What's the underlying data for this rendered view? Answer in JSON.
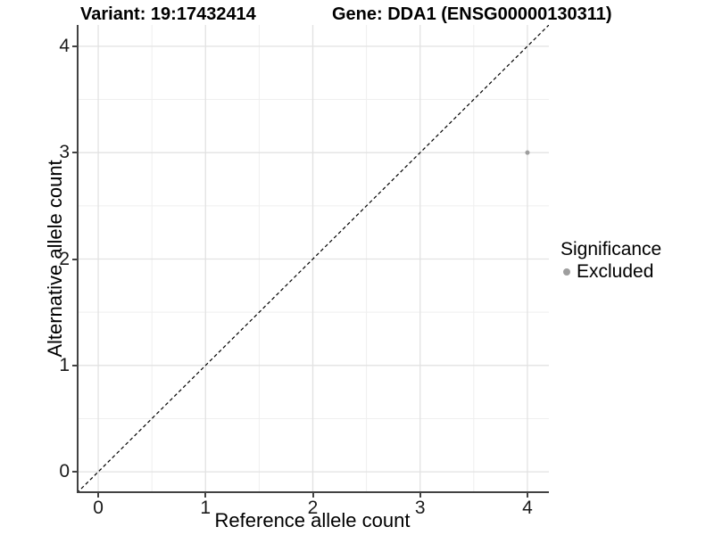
{
  "titles": {
    "variant": "Variant: 19:17432414",
    "gene": "Gene: DDA1 (ENSG00000130311)"
  },
  "axes": {
    "x_label": "Reference allele count",
    "y_label": "Alternative allele count"
  },
  "legend": {
    "title": "Significance",
    "items": [
      {
        "label": "Excluded",
        "color": "#9e9e9e"
      }
    ]
  },
  "chart_data": {
    "type": "scatter",
    "title": "Variant: 19:17432414 — Gene: DDA1 (ENSG00000130311)",
    "xlabel": "Reference allele count",
    "ylabel": "Alternative allele count",
    "xlim": [
      -0.2,
      4.2
    ],
    "ylim": [
      -0.2,
      4.2
    ],
    "x_ticks": [
      0,
      1,
      2,
      3,
      4
    ],
    "y_ticks": [
      0,
      1,
      2,
      3,
      4
    ],
    "minor_gridlines": [
      0.5,
      1.5,
      2.5,
      3.5
    ],
    "grid": true,
    "legend_position": "right",
    "series": [
      {
        "name": "Excluded",
        "color": "#9e9e9e",
        "points": [
          {
            "x": 4,
            "y": 3
          }
        ]
      }
    ],
    "reference_line": {
      "type": "identity",
      "from": [
        -0.2,
        -0.2
      ],
      "to": [
        4.2,
        4.2
      ],
      "style": "dashed",
      "color": "#000000"
    },
    "colors": {
      "background": "#ffffff",
      "grid_major": "#e2e2e2",
      "grid_minor": "#efefef",
      "axis_line": "#424242",
      "point": "#9e9e9e"
    }
  }
}
